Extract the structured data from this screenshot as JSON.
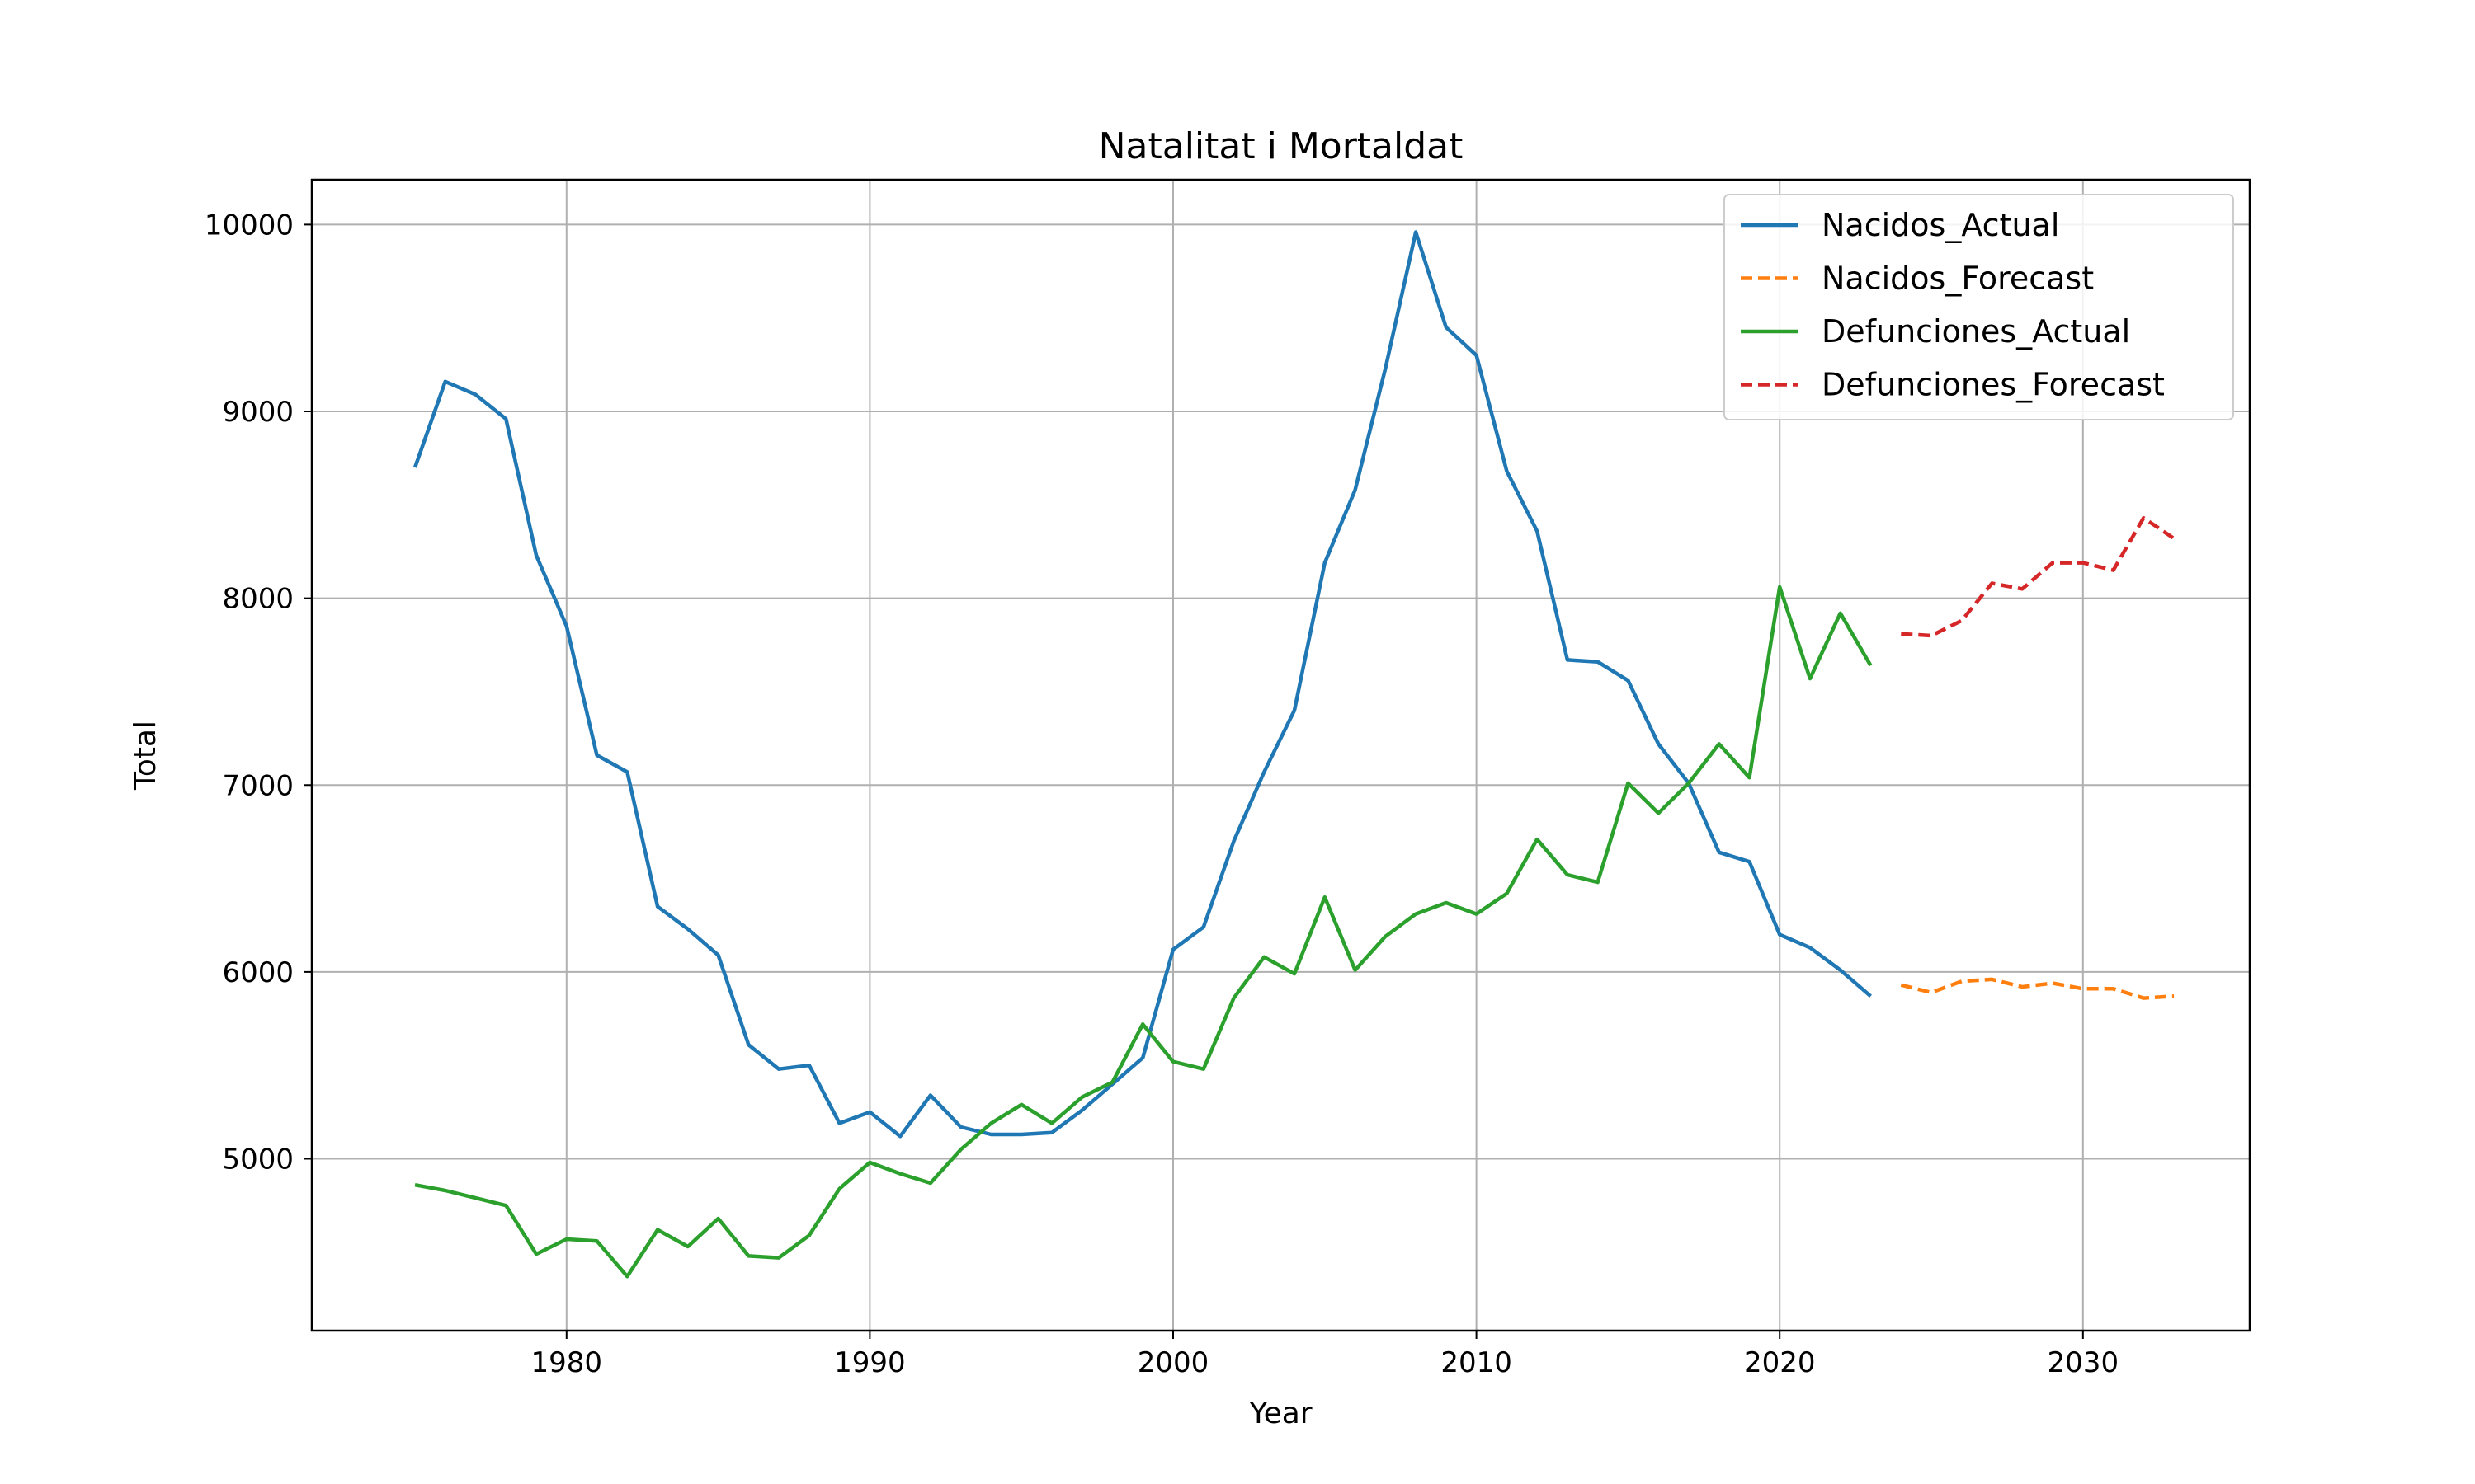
{
  "chart_data": {
    "type": "line",
    "title": "Natalitat i Mortaldat",
    "xlabel": "Year",
    "ylabel": "Total",
    "xlim": [
      1971.6,
      2035.5
    ],
    "ylim": [
      4080,
      10240
    ],
    "xticks": [
      1980,
      1990,
      2000,
      2010,
      2020,
      2030
    ],
    "yticks": [
      5000,
      6000,
      7000,
      8000,
      9000,
      10000
    ],
    "grid": true,
    "legend_position": "top-right",
    "series": [
      {
        "name": "Nacidos_Actual",
        "color": "#1f77b4",
        "style": "solid",
        "x": [
          1975,
          1976,
          1977,
          1978,
          1979,
          1980,
          1981,
          1982,
          1983,
          1984,
          1985,
          1986,
          1987,
          1988,
          1989,
          1990,
          1991,
          1992,
          1993,
          1994,
          1995,
          1996,
          1997,
          1998,
          1999,
          2000,
          2001,
          2002,
          2003,
          2004,
          2005,
          2006,
          2007,
          2008,
          2009,
          2010,
          2011,
          2012,
          2013,
          2014,
          2015,
          2016,
          2017,
          2018,
          2019,
          2020,
          2021,
          2022,
          2023
        ],
        "values": [
          8700,
          9160,
          9090,
          8960,
          8230,
          7850,
          7160,
          7070,
          6350,
          6230,
          6090,
          5610,
          5480,
          5500,
          5190,
          5250,
          5120,
          5340,
          5170,
          5130,
          5130,
          5140,
          5260,
          5400,
          5540,
          6120,
          6240,
          6700,
          7070,
          7400,
          8190,
          8580,
          9230,
          9960,
          9450,
          9300,
          8680,
          8360,
          7670,
          7660,
          7560,
          7220,
          7010,
          6640,
          6590,
          6200,
          6130,
          6010,
          5870
        ]
      },
      {
        "name": "Nacidos_Forecast",
        "color": "#ff7f0e",
        "style": "dashed",
        "x": [
          2024,
          2025,
          2026,
          2027,
          2028,
          2029,
          2030,
          2031,
          2032,
          2033
        ],
        "values": [
          5930,
          5890,
          5950,
          5960,
          5920,
          5940,
          5910,
          5910,
          5860,
          5870
        ]
      },
      {
        "name": "Defunciones_Actual",
        "color": "#2ca02c",
        "style": "solid",
        "x": [
          1975,
          1976,
          1977,
          1978,
          1979,
          1980,
          1981,
          1982,
          1983,
          1984,
          1985,
          1986,
          1987,
          1988,
          1989,
          1990,
          1991,
          1992,
          1993,
          1994,
          1995,
          1996,
          1997,
          1998,
          1999,
          2000,
          2001,
          2002,
          2003,
          2004,
          2005,
          2006,
          2007,
          2008,
          2009,
          2010,
          2011,
          2012,
          2013,
          2014,
          2015,
          2016,
          2017,
          2018,
          2019,
          2020,
          2021,
          2022,
          2023
        ],
        "values": [
          4860,
          4830,
          4790,
          4750,
          4490,
          4570,
          4560,
          4370,
          4620,
          4530,
          4680,
          4480,
          4470,
          4590,
          4840,
          4980,
          4920,
          4870,
          5050,
          5190,
          5290,
          5190,
          5330,
          5410,
          5720,
          5520,
          5480,
          5860,
          6080,
          5990,
          6400,
          6010,
          6190,
          6310,
          6370,
          6310,
          6420,
          6710,
          6520,
          6480,
          7010,
          6850,
          7010,
          7220,
          7040,
          8060,
          7570,
          7920,
          7640
        ]
      },
      {
        "name": "Defunciones_Forecast",
        "color": "#d62728",
        "style": "dashed",
        "x": [
          2024,
          2025,
          2026,
          2027,
          2028,
          2029,
          2030,
          2031,
          2032,
          2033
        ],
        "values": [
          7810,
          7800,
          7880,
          8080,
          8050,
          8190,
          8190,
          8150,
          8430,
          8320
        ]
      }
    ]
  }
}
